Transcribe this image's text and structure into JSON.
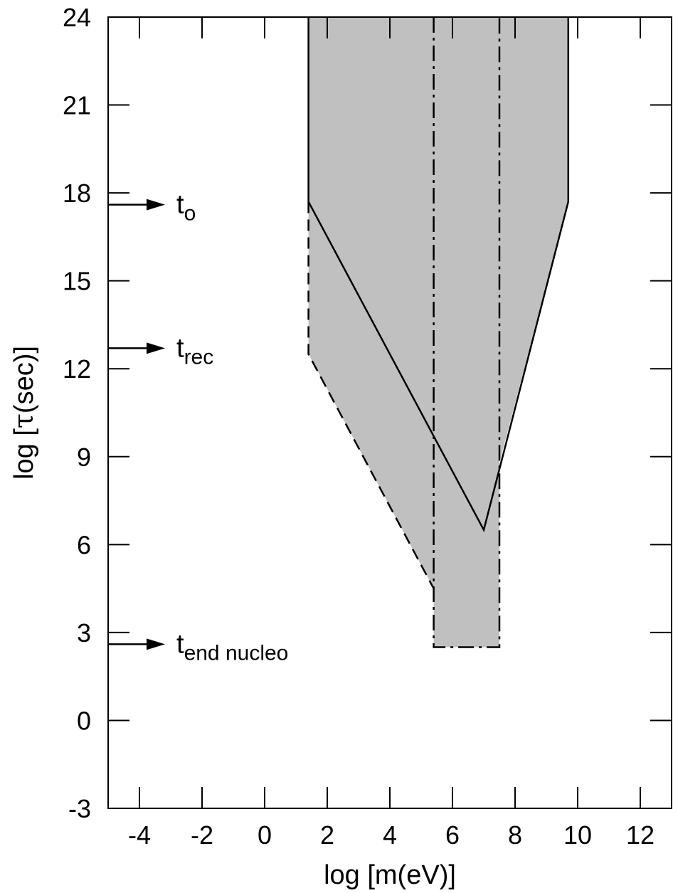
{
  "chart_data": {
    "type": "area",
    "title": "",
    "xlabel": "log [m(eV)]",
    "ylabel_prefix": "log [",
    "ylabel_symbol": "τ",
    "ylabel_suffix": "(sec)]",
    "xlim": [
      -5,
      13
    ],
    "ylim": [
      -3,
      24
    ],
    "xticks": [
      -4,
      -2,
      0,
      2,
      4,
      6,
      8,
      10,
      12
    ],
    "yticks": [
      -3,
      0,
      3,
      6,
      9,
      12,
      15,
      18,
      21,
      24
    ],
    "grid": false,
    "fill_color": "#c0c0c0",
    "shaded_region": {
      "x": [
        1.4,
        9.7,
        9.7,
        7.5,
        7.5,
        5.4,
        5.4,
        1.4
      ],
      "y": [
        24,
        24,
        17.7,
        8.8,
        2.5,
        2.5,
        4.5,
        12.5
      ]
    },
    "lines": [
      {
        "style": "solid",
        "x": [
          1.4,
          1.4
        ],
        "y": [
          24,
          17.7
        ]
      },
      {
        "style": "solid",
        "x": [
          1.4,
          7.0,
          9.7,
          9.7
        ],
        "y": [
          17.7,
          6.5,
          17.7,
          24
        ]
      },
      {
        "style": "dashed",
        "x": [
          1.4,
          1.4,
          5.4
        ],
        "y": [
          17.7,
          12.5,
          4.5
        ]
      },
      {
        "style": "dashdot",
        "x": [
          5.4,
          5.4,
          7.5,
          7.5
        ],
        "y": [
          24,
          2.5,
          2.5,
          24
        ]
      }
    ],
    "annotations": [
      {
        "main": "t",
        "sub": "o",
        "y": 17.6
      },
      {
        "main": "t",
        "sub": "rec",
        "y": 12.7
      },
      {
        "main": "t",
        "sub": "end nucleo",
        "y": 2.6
      }
    ]
  }
}
